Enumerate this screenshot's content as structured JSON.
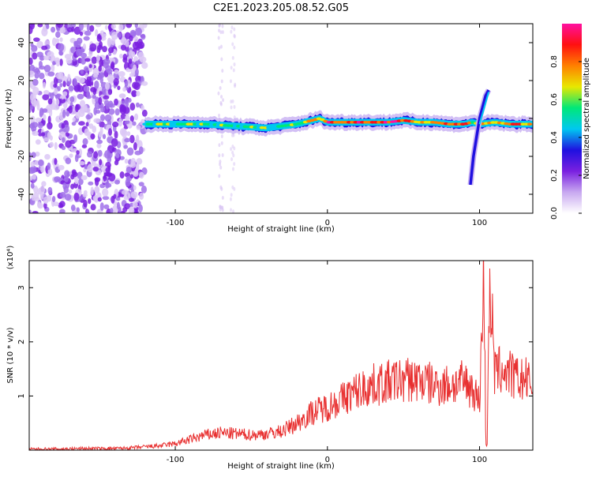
{
  "title": "C2E1.2023.205.08.52.G05",
  "colorbar": {
    "label": "Normalized spectral amplitude",
    "ticks": [
      "0.0",
      "0.2",
      "0.4",
      "0.6",
      "0.8"
    ],
    "tick_values": [
      0.0,
      0.2,
      0.4,
      0.6,
      0.8
    ],
    "range": [
      0,
      1
    ],
    "colors": [
      "#ffffff",
      "#c8a8f0",
      "#7a20e0",
      "#1f10e0",
      "#00c8f0",
      "#00e878",
      "#e8e800",
      "#ff8000",
      "#ff1010",
      "#ff10a0"
    ]
  },
  "chart_data": [
    {
      "type": "heatmap",
      "xlabel": "Height of straight line (km)",
      "ylabel": "Frequency (Hz)",
      "xlim": [
        -196,
        135
      ],
      "ylim": [
        -50,
        50
      ],
      "xticks": [
        -100,
        0,
        100
      ],
      "xtick_labels": [
        "-100",
        "0",
        "100"
      ],
      "yticks": [
        -40,
        -20,
        0,
        20,
        40
      ],
      "ytick_labels": [
        "-40",
        "-20",
        "0",
        "20",
        "40"
      ],
      "noise_region_x": [
        -196,
        -120
      ],
      "ridge": {
        "x": [
          -120,
          -100,
          -80,
          -60,
          -40,
          -30,
          -20,
          -10,
          -5,
          0,
          10,
          40,
          50,
          60,
          70,
          80,
          90,
          95,
          100,
          110,
          120,
          135
        ],
        "frequency": [
          -3,
          -3,
          -3,
          -4,
          -5,
          -4,
          -3,
          -1,
          0,
          -2,
          -2,
          -2,
          -1,
          -2,
          -2,
          -3,
          -3,
          -2,
          -3,
          -2,
          -3,
          -3
        ],
        "amplitude": [
          0.5,
          0.55,
          0.55,
          0.5,
          0.55,
          0.6,
          0.65,
          0.7,
          0.75,
          0.85,
          0.9,
          0.9,
          0.85,
          0.75,
          0.7,
          0.85,
          0.85,
          0.7,
          0.6,
          0.75,
          0.8,
          0.8
        ]
      },
      "branch": {
        "x": [
          94,
          96,
          100,
          104,
          106
        ],
        "frequency": [
          -35,
          -20,
          0,
          12,
          15
        ]
      }
    },
    {
      "type": "line",
      "xlabel": "Height of straight line (km)",
      "ylabel": "SNR (10 * v/v)",
      "yscale_label": "(x10⁴)",
      "xlim": [
        -196,
        135
      ],
      "ylim": [
        0,
        3.5
      ],
      "xticks": [
        -100,
        0,
        100
      ],
      "xtick_labels": [
        "-100",
        "0",
        "100"
      ],
      "yticks": [
        1,
        2,
        3
      ],
      "ytick_labels": [
        "1",
        "2",
        "3"
      ],
      "line_color": "#e83030",
      "series": [
        {
          "x": [
            -196,
            -180,
            -160,
            -140,
            -130,
            -120,
            -110,
            -100,
            -90,
            -80,
            -70,
            -60,
            -50,
            -40,
            -30,
            -20,
            -10,
            0,
            10,
            20,
            30,
            40,
            50,
            60,
            70,
            80,
            90,
            95,
            100,
            102,
            103,
            104,
            105,
            106,
            108,
            110,
            115,
            120,
            125,
            130,
            135
          ],
          "values": [
            0.02,
            0.02,
            0.03,
            0.03,
            0.04,
            0.06,
            0.08,
            0.12,
            0.2,
            0.28,
            0.32,
            0.3,
            0.28,
            0.3,
            0.35,
            0.5,
            0.7,
            0.8,
            0.95,
            1.1,
            1.2,
            1.25,
            1.3,
            1.3,
            1.2,
            1.2,
            1.25,
            1.15,
            0.9,
            2.6,
            3.4,
            0.15,
            0.1,
            2.7,
            2.5,
            1.4,
            1.5,
            1.4,
            1.3,
            1.3,
            1.2
          ]
        }
      ]
    }
  ]
}
